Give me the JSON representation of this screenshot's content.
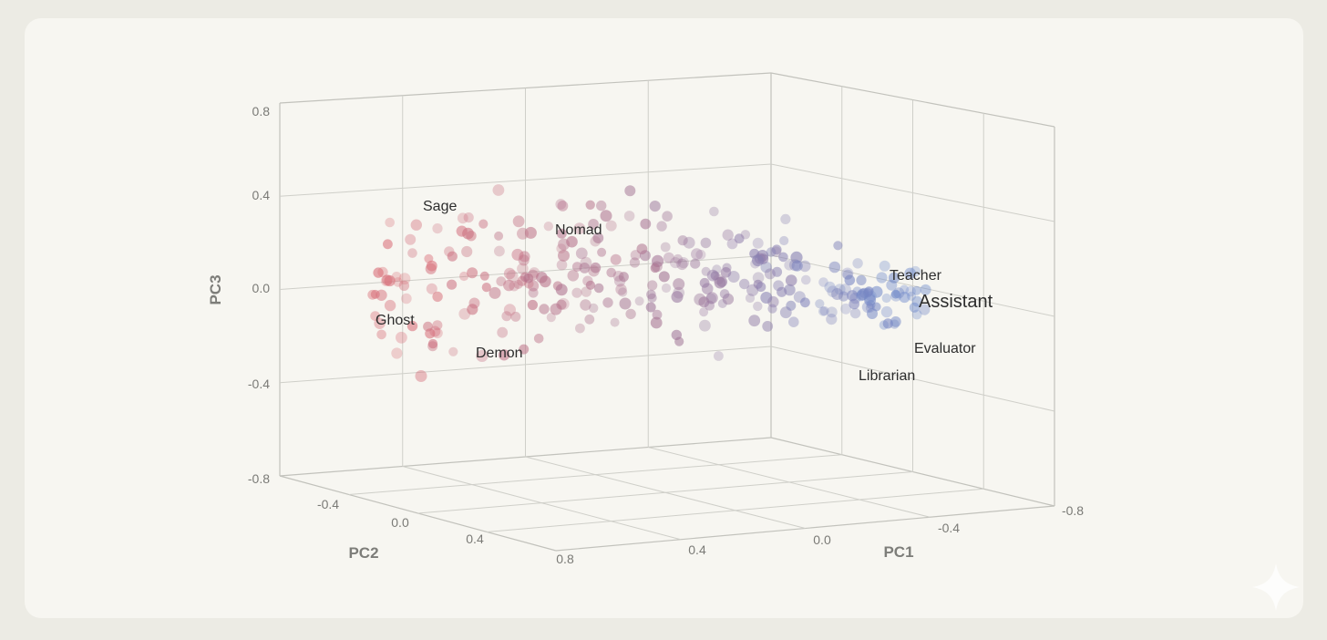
{
  "chart_data": {
    "type": "scatter",
    "dimensions": 3,
    "title": "",
    "axes": {
      "x": {
        "label": "PC1",
        "range": [
          -0.8,
          0.8
        ],
        "ticks": [
          "-0.8",
          "-0.4",
          "0.0",
          "0.4",
          "0.8"
        ]
      },
      "y": {
        "label": "PC2",
        "range": [
          -0.8,
          0.8
        ],
        "ticks": [
          "-0.4",
          "0.0",
          "0.4",
          "0.8"
        ]
      },
      "z": {
        "label": "PC3",
        "range": [
          -0.8,
          0.8
        ],
        "ticks": [
          "0.8",
          "0.4",
          "0.0",
          "-0.4",
          "-0.8"
        ]
      }
    },
    "color_scale": {
      "low": "#d9707a",
      "mid": "#a37394",
      "high": "#6f8acb"
    },
    "point_count": 320,
    "labeled_points": [
      {
        "name": "Sage",
        "pc1": 0.42,
        "pc3": 0.33,
        "style": "normal"
      },
      {
        "name": "Nomad",
        "pc1": 0.16,
        "pc3": 0.27,
        "style": "normal"
      },
      {
        "name": "Ghost",
        "pc1": 0.64,
        "pc3": -0.08,
        "style": "normal"
      },
      {
        "name": "Demon",
        "pc1": 0.38,
        "pc3": -0.2,
        "style": "normal"
      },
      {
        "name": "Teacher",
        "pc1": -0.56,
        "pc3": 0.05,
        "style": "normal"
      },
      {
        "name": "Assistant",
        "pc1": -0.62,
        "pc3": -0.02,
        "style": "large"
      },
      {
        "name": "Evaluator",
        "pc1": -0.62,
        "pc3": -0.22,
        "style": "normal"
      },
      {
        "name": "Librarian",
        "pc1": -0.47,
        "pc3": -0.29,
        "style": "normal"
      }
    ]
  }
}
